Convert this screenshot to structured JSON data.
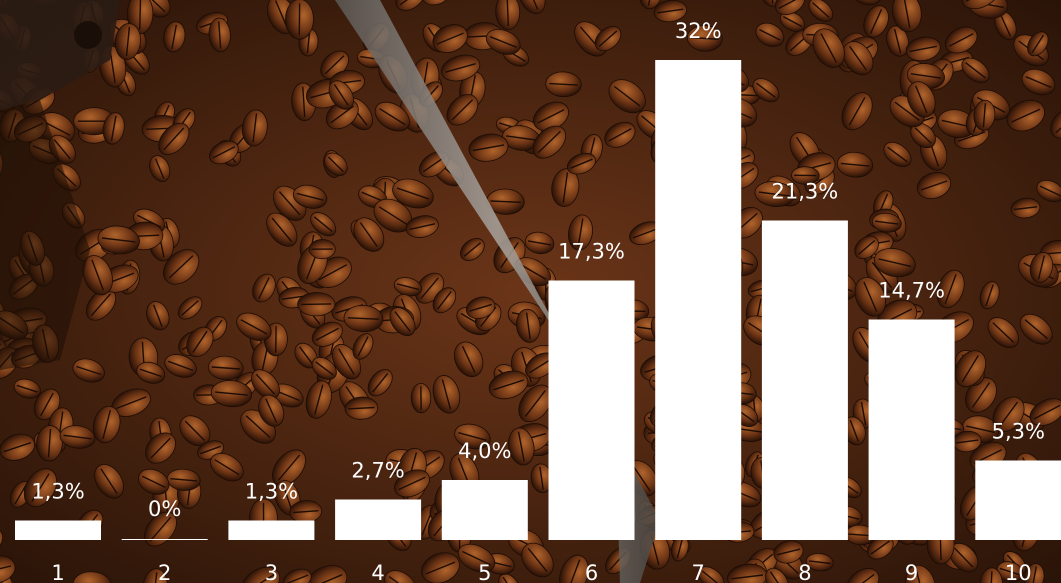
{
  "background": {
    "description_icon": "coffee-beans-photo",
    "colors": {
      "dark": "#2a1408",
      "mid": "#5a2e14",
      "light": "#8a4a22",
      "highlight": "#b0642c",
      "scoop_metal": "#8e8a86"
    }
  },
  "chart_data": {
    "type": "bar",
    "title": "",
    "xlabel": "",
    "ylabel": "",
    "categories": [
      "1",
      "2",
      "3",
      "4",
      "5",
      "6",
      "7",
      "8",
      "9",
      "10"
    ],
    "values": [
      1.3,
      0,
      1.3,
      2.7,
      4.0,
      17.3,
      32,
      21.3,
      14.7,
      5.3
    ],
    "value_labels": [
      "1,3%",
      "0%",
      "1,3%",
      "2,7%",
      "4,0%",
      "17,3%",
      "32%",
      "21,3%",
      "14,7%",
      "5,3%"
    ],
    "ylim": [
      0,
      32
    ],
    "grid": false,
    "legend": "none",
    "bar_color": "#ffffff",
    "label_color": "#ffffff"
  }
}
